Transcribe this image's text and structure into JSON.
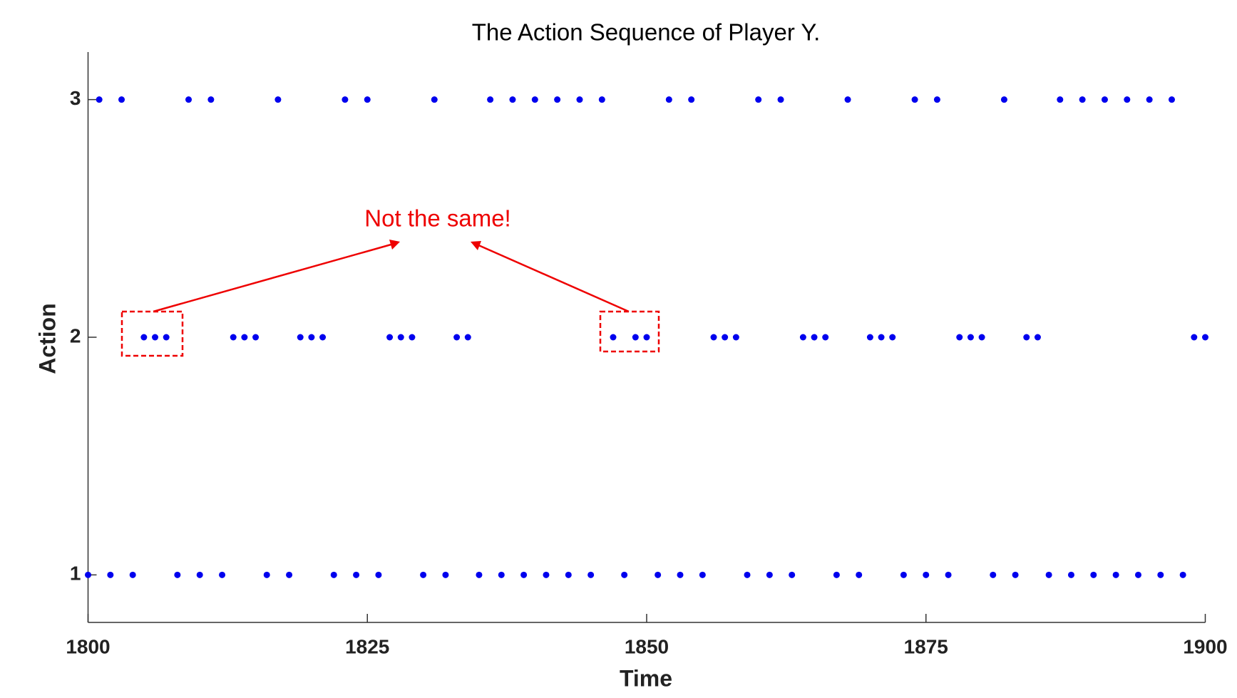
{
  "chart_data": {
    "type": "scatter",
    "title": "The Action Sequence of Player Y.",
    "x_label": "Time",
    "y_label": "Action",
    "color": "#0000ee",
    "x": [
      1800,
      1801,
      1802,
      1803,
      1804,
      1805,
      1806,
      1807,
      1808,
      1809,
      1810,
      1811,
      1812,
      1813,
      1814,
      1815,
      1816,
      1817,
      1818,
      1819,
      1820,
      1821,
      1822,
      1823,
      1824,
      1825,
      1826,
      1827,
      1828,
      1829,
      1830,
      1831,
      1832,
      1833,
      1834,
      1835,
      1836,
      1837,
      1838,
      1839,
      1840,
      1841,
      1842,
      1843,
      1844,
      1845,
      1846,
      1847,
      1848,
      1849,
      1850,
      1851,
      1852,
      1853,
      1854,
      1855,
      1856,
      1857,
      1858,
      1859,
      1860,
      1861,
      1862,
      1863,
      1864,
      1865,
      1866,
      1867,
      1868,
      1869,
      1870,
      1871,
      1872,
      1873,
      1874,
      1875,
      1876,
      1877,
      1878,
      1879,
      1880,
      1881,
      1882,
      1883,
      1884,
      1885,
      1886,
      1887,
      1888,
      1889,
      1890,
      1891,
      1892,
      1893,
      1894,
      1895,
      1896,
      1897,
      1898,
      1899,
      1900
    ],
    "values": [
      1,
      3,
      1,
      3,
      1,
      2,
      2,
      2,
      1,
      3,
      1,
      3,
      1,
      2,
      2,
      2,
      1,
      3,
      1,
      2,
      2,
      2,
      1,
      3,
      1,
      3,
      1,
      2,
      2,
      2,
      1,
      3,
      1,
      2,
      2,
      1,
      3,
      1,
      3,
      1,
      3,
      1,
      3,
      1,
      3,
      1,
      3,
      2,
      1,
      2,
      2,
      1,
      3,
      1,
      3,
      1,
      2,
      2,
      2,
      1,
      3,
      1,
      3,
      1,
      2,
      2,
      2,
      1,
      3,
      1,
      2,
      2,
      2,
      1,
      3,
      1,
      3,
      1,
      2,
      2,
      2,
      1,
      3,
      1,
      2,
      2,
      1,
      3,
      1,
      3,
      1,
      3,
      1,
      3,
      1,
      3,
      1,
      3,
      1,
      2,
      2
    ],
    "xlim": [
      1800,
      1900
    ],
    "xticks": [
      1800,
      1825,
      1850,
      1875,
      1900
    ],
    "ylim": [
      0.8,
      3.2
    ],
    "yticks": [
      1,
      2,
      3
    ],
    "annotation": "Not the same!"
  }
}
